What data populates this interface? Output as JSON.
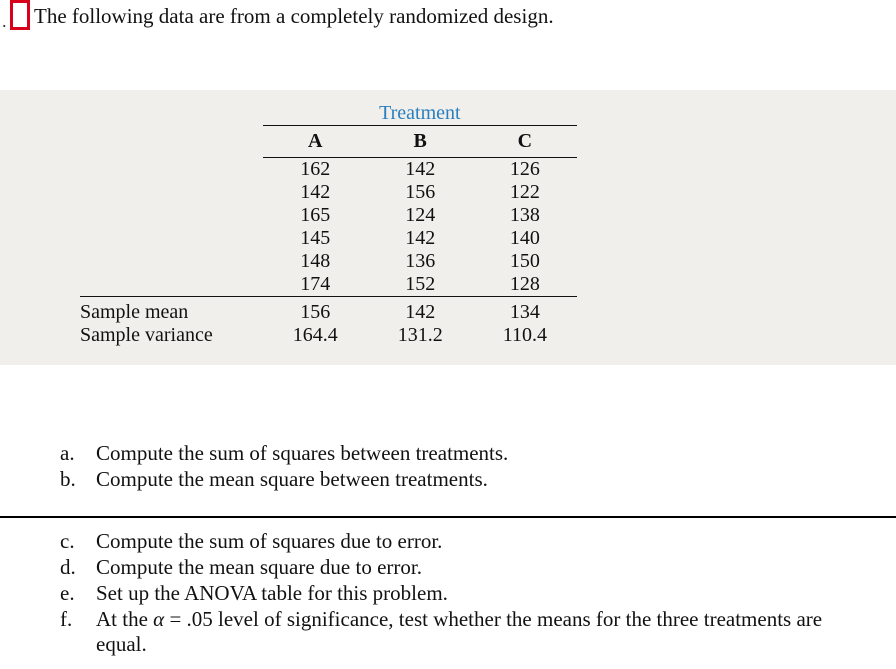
{
  "intro_text": "The following data are from a completely randomized design.",
  "accent_red": "#d9001b",
  "table": {
    "background_color": "#f0efeb",
    "treatment_header": "Treatment",
    "treatment_header_color": "#2a7fbf",
    "columns": [
      "A",
      "B",
      "C"
    ],
    "data_rows": [
      [
        162,
        142,
        126
      ],
      [
        142,
        156,
        122
      ],
      [
        165,
        124,
        138
      ],
      [
        145,
        142,
        140
      ],
      [
        148,
        136,
        150
      ],
      [
        174,
        152,
        128
      ]
    ],
    "summary_labels": [
      "Sample mean",
      "Sample variance"
    ],
    "summary_rows": [
      [
        156,
        142,
        134
      ],
      [
        164.4,
        131.2,
        110.4
      ]
    ]
  },
  "questions_top": [
    {
      "label": "a.",
      "text": "Compute the sum of squares between treatments."
    },
    {
      "label": "b.",
      "text": "Compute the mean square between treatments."
    }
  ],
  "questions_bottom": [
    {
      "label": "c.",
      "text": "Compute the sum of squares due to error."
    },
    {
      "label": "d.",
      "text": "Compute the mean square due to error."
    },
    {
      "label": "e.",
      "text": "Set up the ANOVA table for this problem."
    },
    {
      "label": "f.",
      "text": "At the α = .05 level of significance, test whether the means for the three treatments are equal."
    }
  ]
}
